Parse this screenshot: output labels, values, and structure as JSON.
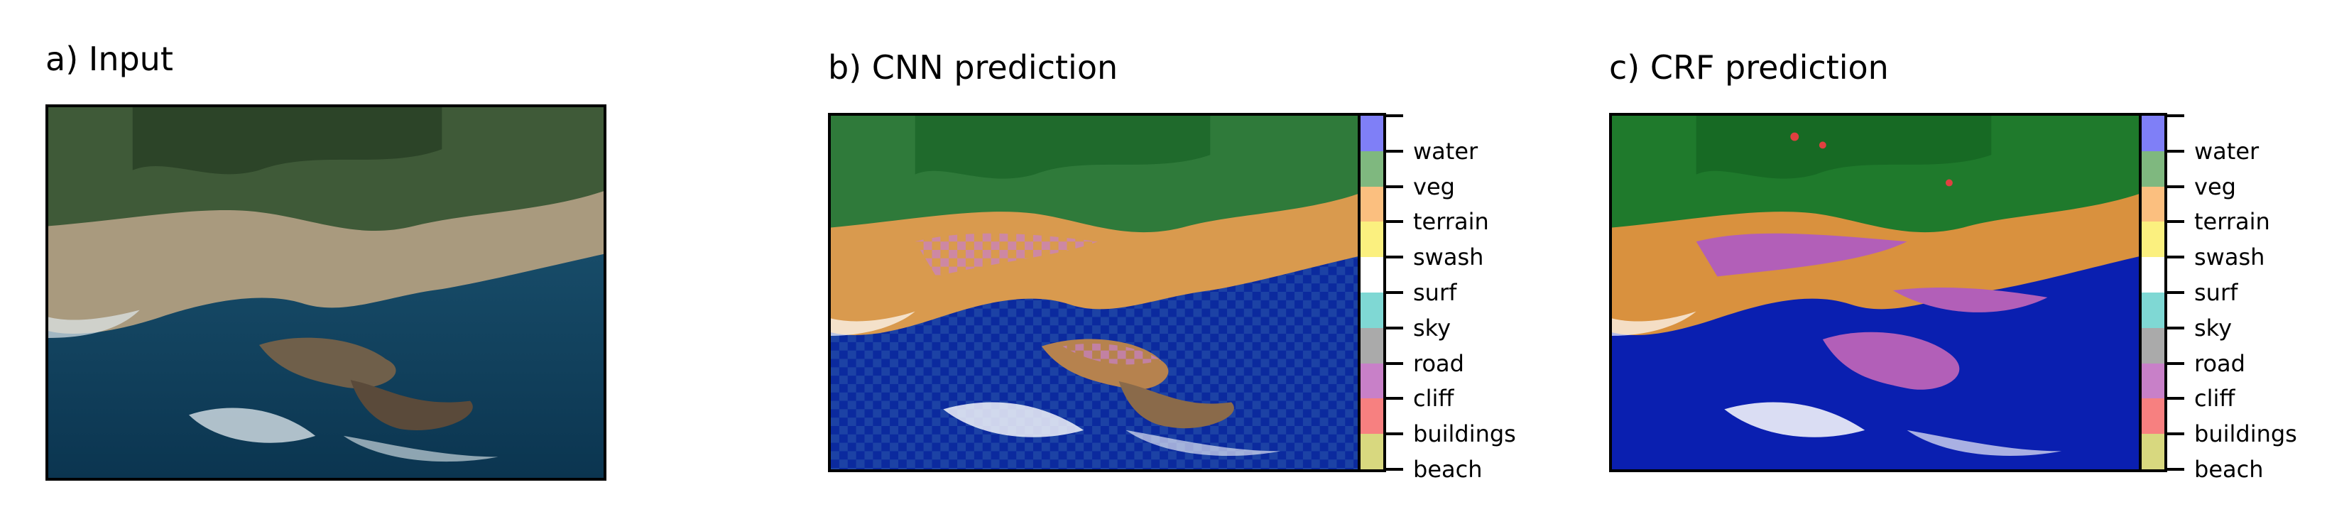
{
  "panels": [
    {
      "title": "a) Input"
    },
    {
      "title": "b) CNN prediction"
    },
    {
      "title": "c) CRF prediction"
    }
  ],
  "classes": [
    {
      "label": "water",
      "color": "#7f7ff7"
    },
    {
      "label": "veg",
      "color": "#7fb87f"
    },
    {
      "label": "terrain",
      "color": "#fbbf7f"
    },
    {
      "label": "swash",
      "color": "#fbf07f"
    },
    {
      "label": "surf",
      "color": "#ffffff"
    },
    {
      "label": "sky",
      "color": "#7fd8d4"
    },
    {
      "label": "road",
      "color": "#aaaaaa"
    },
    {
      "label": "cliff",
      "color": "#c880c8"
    },
    {
      "label": "buildings",
      "color": "#f78080"
    },
    {
      "label": "beach",
      "color": "#d8d87f"
    }
  ]
}
